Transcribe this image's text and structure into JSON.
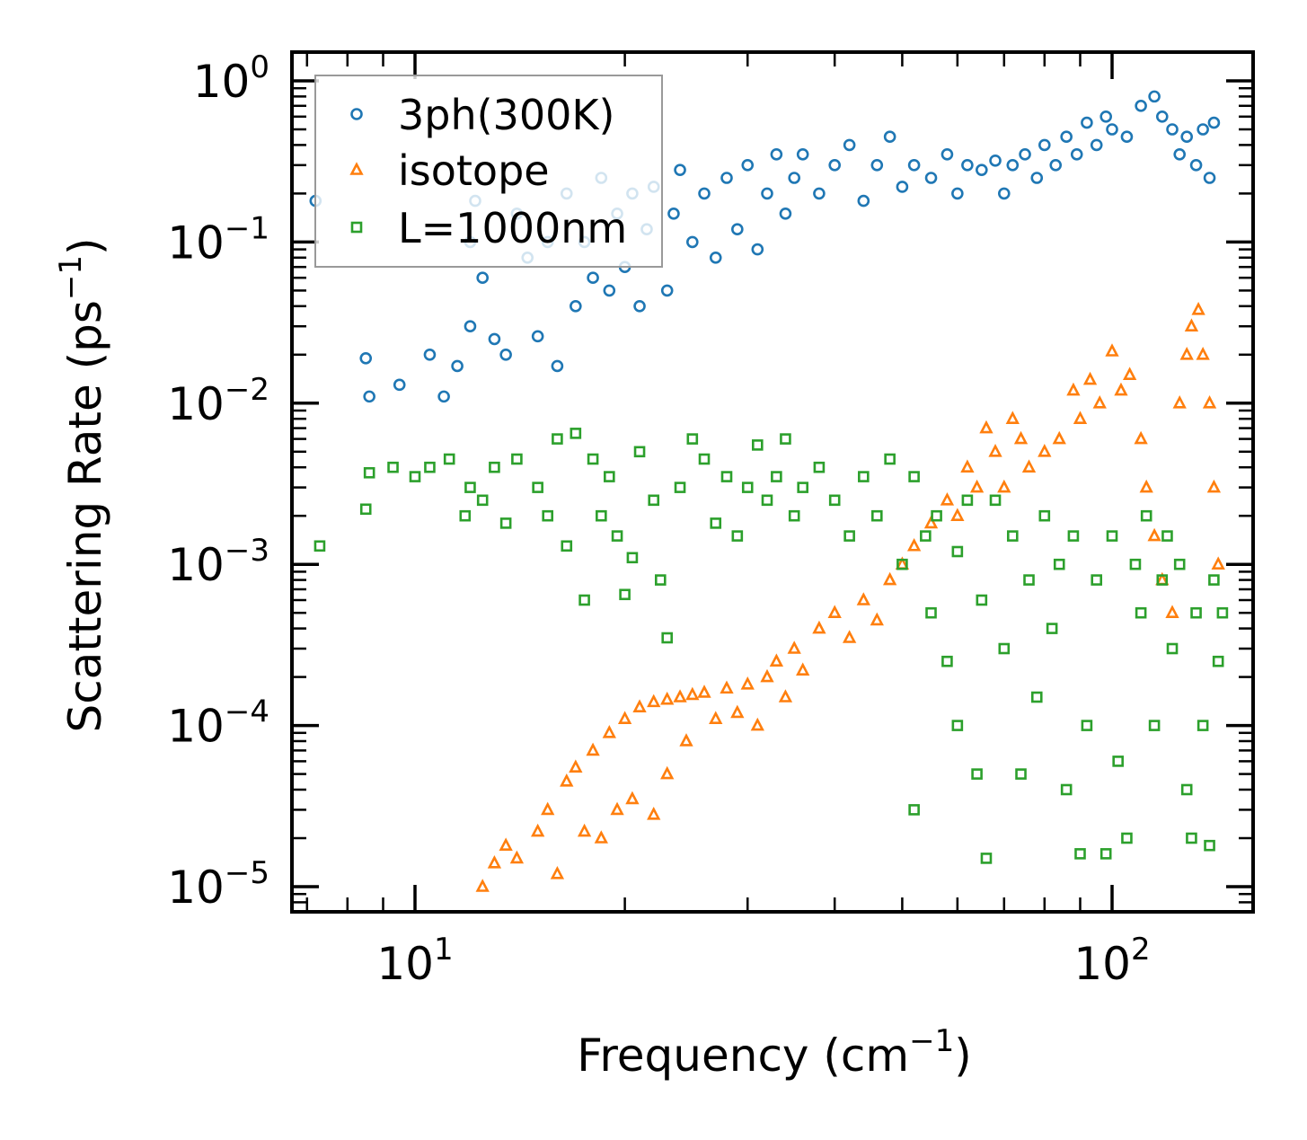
{
  "chart_data": {
    "type": "scatter",
    "xscale": "log",
    "yscale": "log",
    "xlabel": "Frequency (cm",
    "xlabel_exp": "−1",
    "xlabel_end": ")",
    "ylabel": "Scattering Rate (ps",
    "ylabel_exp": "−1",
    "ylabel_end": ")",
    "xlim": [
      6.6,
      160
    ],
    "ylim": [
      7e-06,
      1.5
    ],
    "xticks": [
      {
        "value": 10,
        "base": "10",
        "exp": "1"
      },
      {
        "value": 100,
        "base": "10",
        "exp": "2"
      }
    ],
    "yticks": [
      {
        "value": 1,
        "base": "10",
        "exp": "0"
      },
      {
        "value": 0.1,
        "base": "10",
        "exp": "−1"
      },
      {
        "value": 0.01,
        "base": "10",
        "exp": "−2"
      },
      {
        "value": 0.001,
        "base": "10",
        "exp": "−3"
      },
      {
        "value": 0.0001,
        "base": "10",
        "exp": "−4"
      },
      {
        "value": 1e-05,
        "base": "10",
        "exp": "−5"
      }
    ],
    "legend_position": "top-left",
    "grid": false,
    "series": [
      {
        "name": "3ph(300K)",
        "marker": "circle",
        "color": "#1f77b4",
        "points": [
          [
            7.2,
            0.18
          ],
          [
            8.5,
            0.019
          ],
          [
            8.6,
            0.011
          ],
          [
            9.5,
            0.013
          ],
          [
            10.5,
            0.02
          ],
          [
            11,
            0.011
          ],
          [
            11.5,
            0.017
          ],
          [
            12,
            0.03
          ],
          [
            12,
            0.1
          ],
          [
            12.2,
            0.18
          ],
          [
            12.5,
            0.06
          ],
          [
            13,
            0.025
          ],
          [
            13.5,
            0.02
          ],
          [
            14,
            0.15
          ],
          [
            14.5,
            0.08
          ],
          [
            15,
            0.026
          ],
          [
            15.5,
            0.1
          ],
          [
            16,
            0.017
          ],
          [
            16.5,
            0.2
          ],
          [
            17,
            0.04
          ],
          [
            17.5,
            0.1
          ],
          [
            18,
            0.06
          ],
          [
            18.5,
            0.25
          ],
          [
            19,
            0.05
          ],
          [
            19.5,
            0.15
          ],
          [
            20,
            0.07
          ],
          [
            20.5,
            0.2
          ],
          [
            21,
            0.04
          ],
          [
            21.5,
            0.12
          ],
          [
            22,
            0.22
          ],
          [
            23,
            0.05
          ],
          [
            23.5,
            0.15
          ],
          [
            24,
            0.28
          ],
          [
            25,
            0.1
          ],
          [
            26,
            0.2
          ],
          [
            27,
            0.08
          ],
          [
            28,
            0.25
          ],
          [
            29,
            0.12
          ],
          [
            30,
            0.3
          ],
          [
            31,
            0.09
          ],
          [
            32,
            0.2
          ],
          [
            33,
            0.35
          ],
          [
            34,
            0.15
          ],
          [
            35,
            0.25
          ],
          [
            36,
            0.35
          ],
          [
            38,
            0.2
          ],
          [
            40,
            0.3
          ],
          [
            42,
            0.4
          ],
          [
            44,
            0.18
          ],
          [
            46,
            0.3
          ],
          [
            48,
            0.45
          ],
          [
            50,
            0.22
          ],
          [
            52,
            0.3
          ],
          [
            55,
            0.25
          ],
          [
            58,
            0.35
          ],
          [
            60,
            0.2
          ],
          [
            62,
            0.3
          ],
          [
            65,
            0.28
          ],
          [
            68,
            0.32
          ],
          [
            70,
            0.2
          ],
          [
            72,
            0.3
          ],
          [
            75,
            0.35
          ],
          [
            78,
            0.25
          ],
          [
            80,
            0.4
          ],
          [
            83,
            0.3
          ],
          [
            86,
            0.45
          ],
          [
            89,
            0.35
          ],
          [
            92,
            0.55
          ],
          [
            95,
            0.4
          ],
          [
            98,
            0.6
          ],
          [
            100,
            0.5
          ],
          [
            105,
            0.45
          ],
          [
            110,
            0.7
          ],
          [
            115,
            0.8
          ],
          [
            118,
            0.6
          ],
          [
            122,
            0.5
          ],
          [
            125,
            0.35
          ],
          [
            128,
            0.45
          ],
          [
            132,
            0.3
          ],
          [
            135,
            0.5
          ],
          [
            138,
            0.25
          ],
          [
            140,
            0.55
          ]
        ]
      },
      {
        "name": "isotope",
        "marker": "triangle",
        "color": "#ff7f0e",
        "points": [
          [
            12.5,
            1e-05
          ],
          [
            13,
            1.4e-05
          ],
          [
            13.5,
            1.8e-05
          ],
          [
            14,
            1.5e-05
          ],
          [
            15,
            2.2e-05
          ],
          [
            15.5,
            3e-05
          ],
          [
            16,
            1.2e-05
          ],
          [
            16.5,
            4.5e-05
          ],
          [
            17,
            5.5e-05
          ],
          [
            17.5,
            2.2e-05
          ],
          [
            18,
            7e-05
          ],
          [
            18.5,
            2e-05
          ],
          [
            19,
            9e-05
          ],
          [
            19.5,
            3e-05
          ],
          [
            20,
            0.00011
          ],
          [
            20.5,
            3.5e-05
          ],
          [
            21,
            0.00013
          ],
          [
            22,
            0.00014
          ],
          [
            22,
            2.8e-05
          ],
          [
            23,
            0.000145
          ],
          [
            23,
            5e-05
          ],
          [
            24,
            0.00015
          ],
          [
            24.5,
            8e-05
          ],
          [
            25,
            0.000155
          ],
          [
            26,
            0.00016
          ],
          [
            27,
            0.00011
          ],
          [
            28,
            0.00017
          ],
          [
            29,
            0.00012
          ],
          [
            30,
            0.00018
          ],
          [
            31,
            0.0001
          ],
          [
            32,
            0.0002
          ],
          [
            33,
            0.00025
          ],
          [
            34,
            0.00015
          ],
          [
            35,
            0.0003
          ],
          [
            36,
            0.00022
          ],
          [
            38,
            0.0004
          ],
          [
            40,
            0.0005
          ],
          [
            42,
            0.00035
          ],
          [
            44,
            0.0006
          ],
          [
            46,
            0.00045
          ],
          [
            48,
            0.0008
          ],
          [
            50,
            0.001
          ],
          [
            52,
            0.0013
          ],
          [
            55,
            0.0018
          ],
          [
            58,
            0.0025
          ],
          [
            60,
            0.002
          ],
          [
            62,
            0.004
          ],
          [
            64,
            0.003
          ],
          [
            66,
            0.007
          ],
          [
            68,
            0.005
          ],
          [
            70,
            0.003
          ],
          [
            72,
            0.008
          ],
          [
            74,
            0.006
          ],
          [
            76,
            0.004
          ],
          [
            80,
            0.005
          ],
          [
            84,
            0.006
          ],
          [
            88,
            0.012
          ],
          [
            90,
            0.008
          ],
          [
            93,
            0.014
          ],
          [
            96,
            0.01
          ],
          [
            100,
            0.021
          ],
          [
            103,
            0.012
          ],
          [
            106,
            0.015
          ],
          [
            110,
            0.006
          ],
          [
            112,
            0.003
          ],
          [
            115,
            0.0015
          ],
          [
            118,
            0.0008
          ],
          [
            122,
            0.0005
          ],
          [
            125,
            0.01
          ],
          [
            128,
            0.02
          ],
          [
            130,
            0.03
          ],
          [
            133,
            0.038
          ],
          [
            135,
            0.02
          ],
          [
            138,
            0.01
          ],
          [
            140,
            0.003
          ],
          [
            142,
            0.001
          ]
        ]
      },
      {
        "name": "L=1000nm",
        "marker": "square",
        "color": "#2ca02c",
        "points": [
          [
            7.3,
            0.0013
          ],
          [
            8.5,
            0.0022
          ],
          [
            8.6,
            0.0037
          ],
          [
            9.3,
            0.004
          ],
          [
            10,
            0.0035
          ],
          [
            10.5,
            0.004
          ],
          [
            11.2,
            0.0045
          ],
          [
            11.8,
            0.002
          ],
          [
            12,
            0.003
          ],
          [
            12.5,
            0.0025
          ],
          [
            13,
            0.004
          ],
          [
            13.5,
            0.0018
          ],
          [
            14,
            0.0045
          ],
          [
            15,
            0.003
          ],
          [
            15.5,
            0.002
          ],
          [
            16,
            0.006
          ],
          [
            16.5,
            0.0013
          ],
          [
            17,
            0.0065
          ],
          [
            17.5,
            0.0006
          ],
          [
            18,
            0.0045
          ],
          [
            18.5,
            0.002
          ],
          [
            19,
            0.0035
          ],
          [
            19.5,
            0.0015
          ],
          [
            20,
            0.00065
          ],
          [
            20.5,
            0.0011
          ],
          [
            21,
            0.005
          ],
          [
            22,
            0.0025
          ],
          [
            22.5,
            0.0008
          ],
          [
            23,
            0.00035
          ],
          [
            24,
            0.003
          ],
          [
            25,
            0.006
          ],
          [
            26,
            0.0045
          ],
          [
            27,
            0.0018
          ],
          [
            28,
            0.0035
          ],
          [
            29,
            0.0015
          ],
          [
            30,
            0.003
          ],
          [
            31,
            0.0055
          ],
          [
            32,
            0.0025
          ],
          [
            33,
            0.0035
          ],
          [
            34,
            0.006
          ],
          [
            35,
            0.002
          ],
          [
            36,
            0.003
          ],
          [
            38,
            0.004
          ],
          [
            40,
            0.0025
          ],
          [
            42,
            0.0015
          ],
          [
            44,
            0.0035
          ],
          [
            46,
            0.002
          ],
          [
            48,
            0.0045
          ],
          [
            50,
            0.001
          ],
          [
            52,
            0.0035
          ],
          [
            52,
            3e-05
          ],
          [
            54,
            0.0015
          ],
          [
            55,
            0.0005
          ],
          [
            56,
            0.002
          ],
          [
            58,
            0.00025
          ],
          [
            60,
            0.0012
          ],
          [
            60,
            0.0001
          ],
          [
            62,
            0.0025
          ],
          [
            64,
            5e-05
          ],
          [
            65,
            0.0006
          ],
          [
            66,
            1.5e-05
          ],
          [
            68,
            0.0025
          ],
          [
            70,
            0.0003
          ],
          [
            72,
            0.0015
          ],
          [
            74,
            5e-05
          ],
          [
            76,
            0.0008
          ],
          [
            78,
            0.00015
          ],
          [
            80,
            0.002
          ],
          [
            82,
            0.0004
          ],
          [
            84,
            0.001
          ],
          [
            86,
            4e-05
          ],
          [
            88,
            0.0015
          ],
          [
            90,
            1.6e-05
          ],
          [
            92,
            0.0001
          ],
          [
            95,
            0.0008
          ],
          [
            98,
            1.6e-05
          ],
          [
            100,
            0.0015
          ],
          [
            102,
            6e-05
          ],
          [
            105,
            2e-05
          ],
          [
            108,
            0.001
          ],
          [
            110,
            0.0005
          ],
          [
            112,
            0.002
          ],
          [
            115,
            0.0001
          ],
          [
            118,
            0.0008
          ],
          [
            120,
            0.0015
          ],
          [
            122,
            0.0003
          ],
          [
            125,
            0.001
          ],
          [
            128,
            4e-05
          ],
          [
            130,
            2e-05
          ],
          [
            132,
            0.0005
          ],
          [
            135,
            0.0001
          ],
          [
            138,
            1.8e-05
          ],
          [
            140,
            0.0008
          ],
          [
            142,
            0.00025
          ],
          [
            144,
            0.0005
          ]
        ]
      }
    ]
  }
}
